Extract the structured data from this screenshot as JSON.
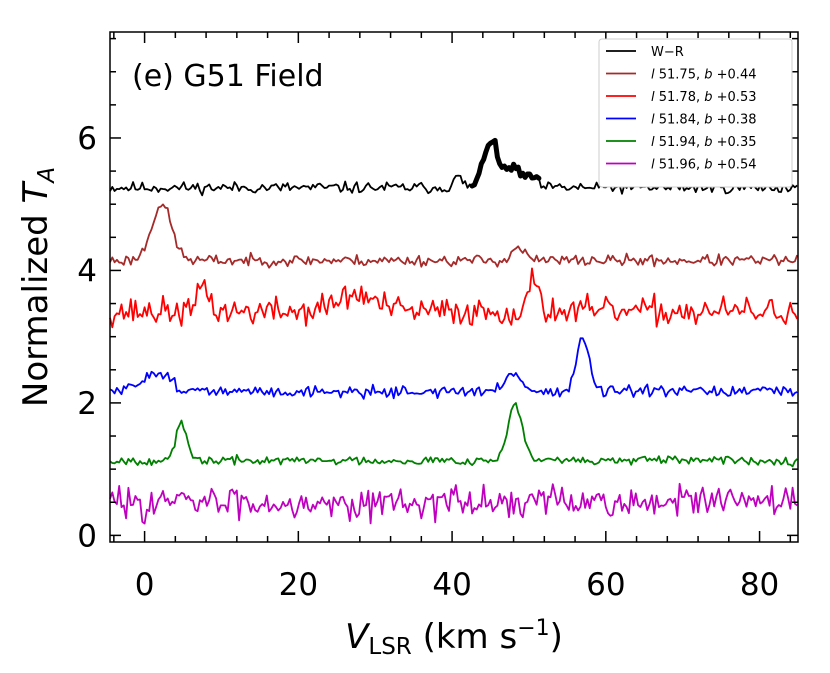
{
  "chart_data": {
    "type": "line",
    "title": "(e) G51 Field",
    "xlabel": {
      "main": "V",
      "sub": "LSR",
      "unit_prefix": " (km s",
      "unit_sup": "−1",
      "unit_suffix": ")"
    },
    "ylabel": {
      "main": "Normalized ",
      "var": "T",
      "sub": "A"
    },
    "xlim": [
      -4.5,
      85
    ],
    "ylim": [
      -0.1,
      7.6
    ],
    "xticks": [
      0,
      20,
      40,
      60,
      80
    ],
    "yticks": [
      0,
      2,
      4,
      6
    ],
    "series": [
      {
        "name": "W−R",
        "color": "#000000",
        "base": 5.25,
        "noise": 0.06,
        "seed": 11,
        "peaks": [
          [
            40.8,
            0.15,
            0.6
          ],
          [
            45.0,
            0.72,
            0.9
          ],
          [
            47.8,
            0.32,
            0.9
          ],
          [
            50.2,
            0.18,
            0.7
          ]
        ],
        "highlight": {
          "range": [
            42.5,
            51.5
          ],
          "width": 5
        }
      },
      {
        "name": "l 51.75, b +0.44",
        "l": "51.75",
        "b": "+0.44",
        "color": "#a52a2a",
        "base": 4.15,
        "noise": 0.06,
        "seed": 23,
        "peaks": [
          [
            2.2,
            0.85,
            1.3
          ],
          [
            48.6,
            0.2,
            0.8
          ]
        ]
      },
      {
        "name": "l 51.78, b +0.53",
        "l": "51.78",
        "b": "+0.53",
        "color": "#ff0000",
        "base": 3.38,
        "noise": 0.15,
        "seed": 37,
        "peaks": [
          [
            7.7,
            0.45,
            0.6
          ],
          [
            27.5,
            0.25,
            2.5
          ],
          [
            50.8,
            0.55,
            0.6
          ]
        ]
      },
      {
        "name": "l 51.84, b +0.38",
        "l": "51.84",
        "b": "+0.38",
        "color": "#0000ff",
        "base": 2.17,
        "noise": 0.06,
        "seed": 51,
        "peaks": [
          [
            1.5,
            0.3,
            1.8
          ],
          [
            48.0,
            0.3,
            1.0
          ],
          [
            57.0,
            0.82,
            0.8
          ]
        ]
      },
      {
        "name": "l 51.94, b +0.35",
        "l": "51.94",
        "b": "+0.35",
        "color": "#008000",
        "base": 1.13,
        "noise": 0.045,
        "seed": 67,
        "peaks": [
          [
            4.8,
            0.55,
            0.7
          ],
          [
            48.2,
            0.87,
            0.9
          ]
        ]
      },
      {
        "name": "l 51.96, b +0.54",
        "l": "51.96",
        "b": "+0.54",
        "color": "#bf00bf",
        "base": 0.5,
        "noise": 0.17,
        "seed": 83,
        "peaks": []
      }
    ]
  }
}
